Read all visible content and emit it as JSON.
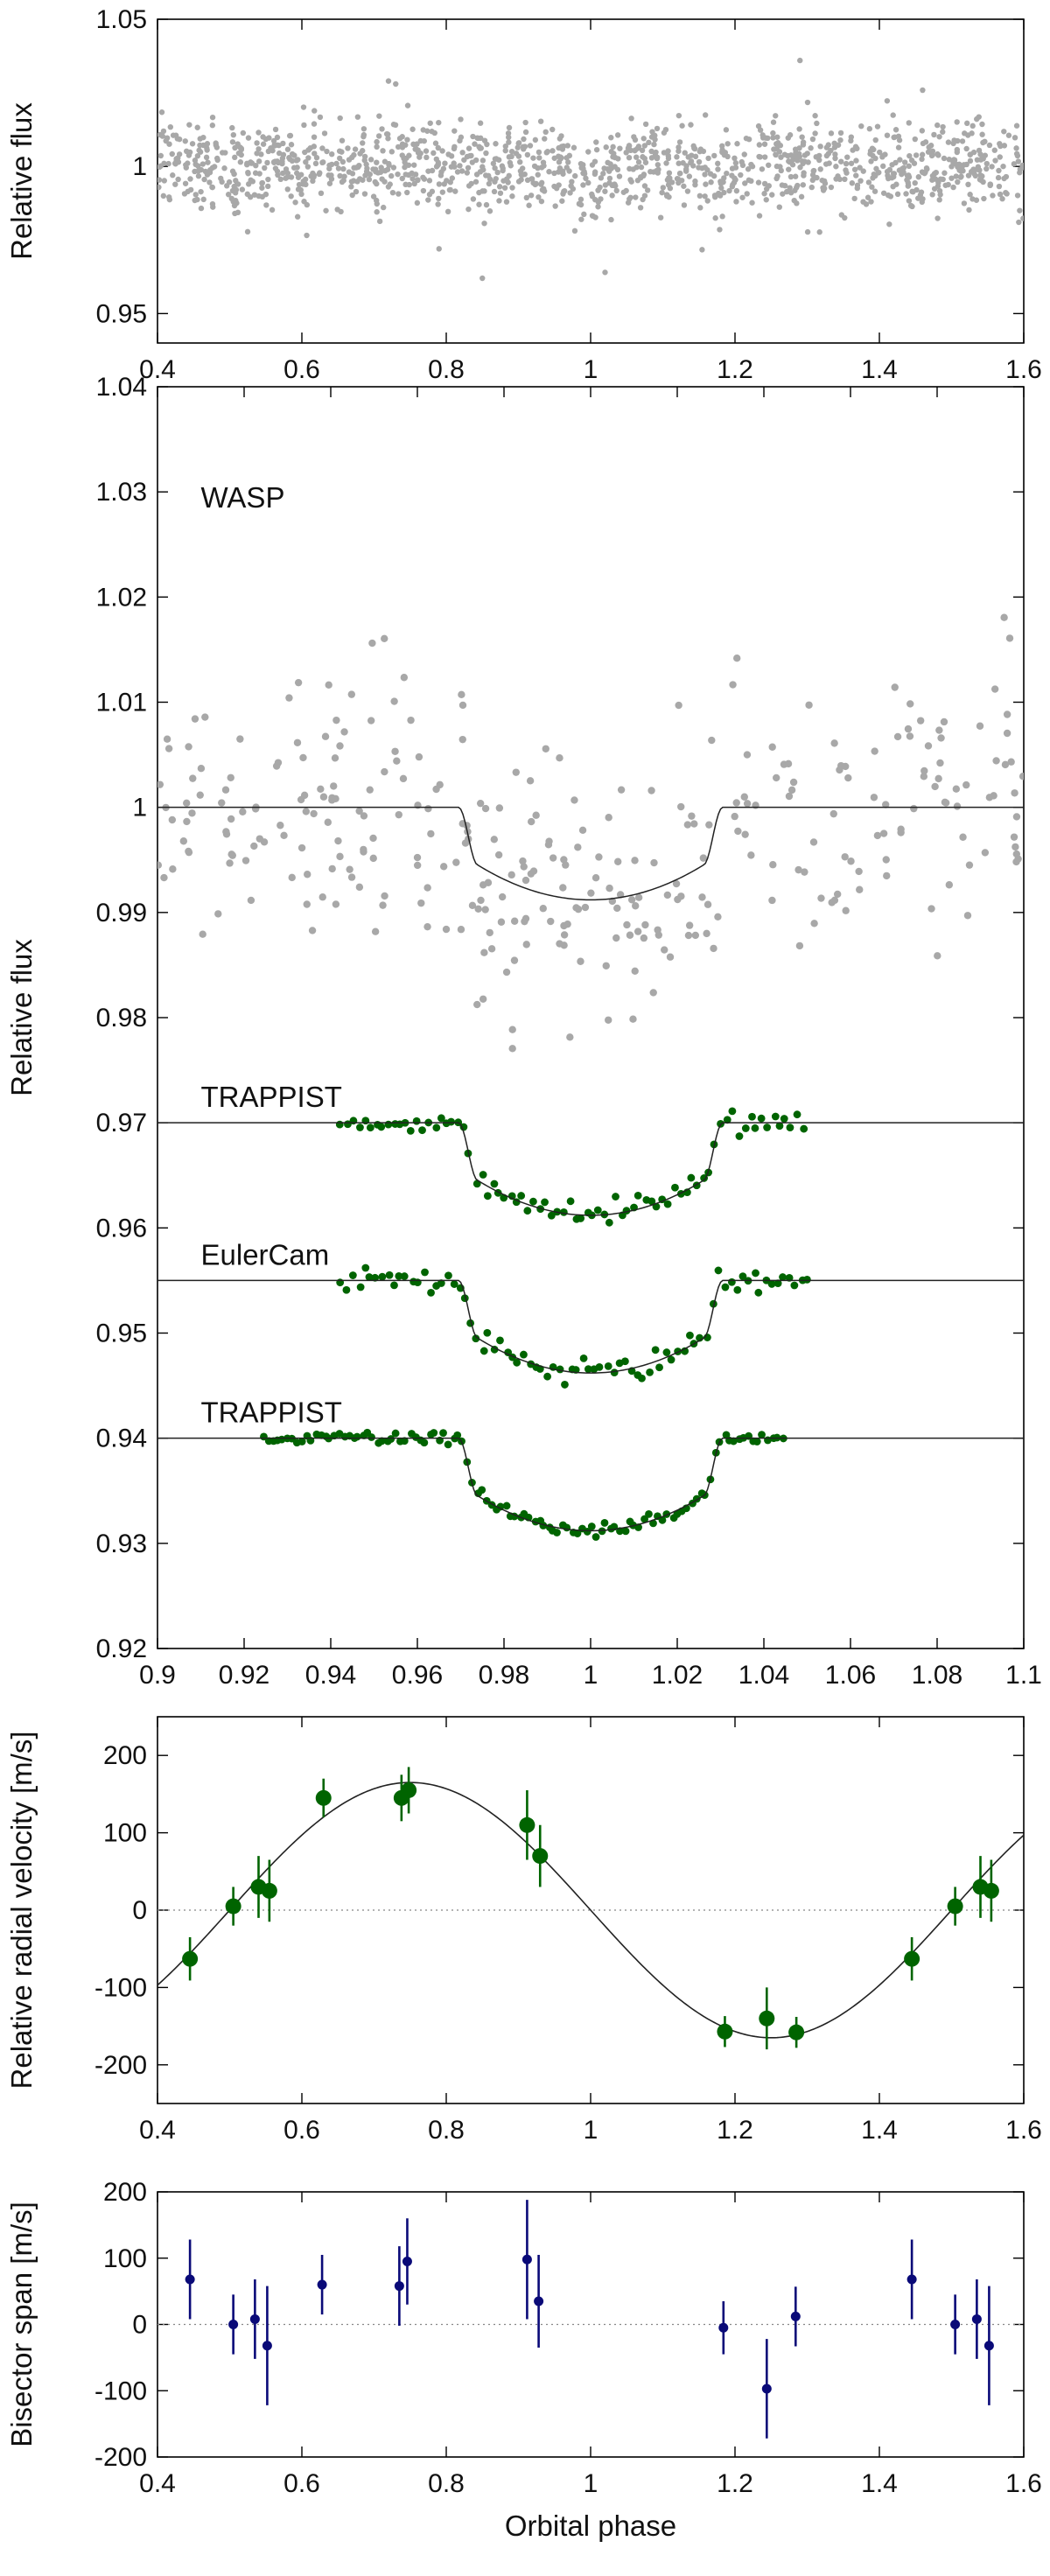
{
  "chart_data": [
    {
      "type": "scatter",
      "panel": "wasp-full-lightcurve",
      "xlabel": "",
      "ylabel": "Relative flux",
      "xlim": [
        0.4,
        1.6
      ],
      "ylim": [
        0.94,
        1.05
      ],
      "xticks": [
        "0.4",
        "0.6",
        "0.8",
        "1",
        "1.2",
        "1.4",
        "1.6"
      ],
      "yticks": [
        "0.95",
        "1",
        "1.05"
      ],
      "point_color": "#a8a8a8",
      "series": [
        {
          "scatter_around": 1.0,
          "sigma": 0.0075,
          "n_points": 1300,
          "x_range": [
            0.4,
            1.6
          ],
          "dip": {
            "center": 1.0,
            "half_width": 0.03,
            "depth": 0.009
          }
        }
      ],
      "notable_points": [
        {
          "x": 0.72,
          "y": 1.029
        },
        {
          "x": 0.73,
          "y": 1.028
        },
        {
          "x": 1.29,
          "y": 1.036
        },
        {
          "x": 0.85,
          "y": 0.962
        },
        {
          "x": 1.02,
          "y": 0.964
        },
        {
          "x": 0.79,
          "y": 0.972
        }
      ],
      "grid": false
    },
    {
      "type": "scatter",
      "panel": "phase-folded-transits",
      "xlabel": "",
      "ylabel": "Relative flux",
      "xlim": [
        0.9,
        1.1
      ],
      "ylim": [
        0.92,
        1.04
      ],
      "xticks": [
        "0.9",
        "0.92",
        "0.94",
        "0.96",
        "0.98",
        "1",
        "1.02",
        "1.04",
        "1.06",
        "1.08",
        "1.1"
      ],
      "yticks": [
        "0.92",
        "0.93",
        "0.94",
        "0.95",
        "0.96",
        "0.97",
        "0.98",
        "0.99",
        "1",
        "1.01",
        "1.02",
        "1.03",
        "1.04"
      ],
      "transit_model": {
        "center": 1.0,
        "half_width": 0.0305,
        "ingress": 0.0045,
        "depth_center": 0.0088,
        "depth_edge": 0.0055
      },
      "series": [
        {
          "name": "WASP",
          "baseline": 1.0,
          "sigma": 0.0062,
          "x_range": [
            0.9,
            1.1
          ],
          "n_points": 330,
          "color": "#a8a8a8",
          "point_size": "small"
        },
        {
          "name": "TRAPPIST",
          "baseline": 0.97,
          "sigma": 0.0006,
          "x_range": [
            0.942,
            1.05
          ],
          "n_points": 80,
          "color": "#006400",
          "point_size": "small"
        },
        {
          "name": "EulerCam",
          "baseline": 0.955,
          "sigma": 0.0006,
          "x_range": [
            0.942,
            1.051
          ],
          "n_points": 80,
          "color": "#006400",
          "point_size": "small"
        },
        {
          "name": "TRAPPIST",
          "baseline": 0.94,
          "sigma": 0.0003,
          "x_range": [
            0.924,
            1.045
          ],
          "n_points": 110,
          "color": "#006400",
          "point_size": "small"
        }
      ],
      "annotations": [
        {
          "text": "WASP",
          "x": 0.91,
          "y": 1.0285
        },
        {
          "text": "TRAPPIST",
          "x": 0.91,
          "y": 0.9715
        },
        {
          "text": "EulerCam",
          "x": 0.91,
          "y": 0.9565
        },
        {
          "text": "TRAPPIST",
          "x": 0.91,
          "y": 0.9415
        }
      ],
      "grid": false
    },
    {
      "type": "scatter",
      "panel": "radial-velocity",
      "xlabel": "",
      "ylabel": "Relative radial velocity [m/s]",
      "xlim": [
        0.4,
        1.6
      ],
      "ylim": [
        -250,
        250
      ],
      "xticks": [
        "0.4",
        "0.6",
        "0.8",
        "1",
        "1.2",
        "1.4",
        "1.6"
      ],
      "yticks": [
        "-200",
        "-100",
        "0",
        "100",
        "200"
      ],
      "model": {
        "semi_amplitude": 165,
        "phase_of_maximum": 0.75
      },
      "color": "#006400",
      "series": [
        {
          "name": "",
          "points": [
            {
              "x": 0.445,
              "y": -63,
              "err": 28
            },
            {
              "x": 0.505,
              "y": 5,
              "err": 25
            },
            {
              "x": 0.54,
              "y": 30,
              "err": 40
            },
            {
              "x": 0.555,
              "y": 25,
              "err": 40
            },
            {
              "x": 0.63,
              "y": 145,
              "err": 25
            },
            {
              "x": 0.738,
              "y": 145,
              "err": 30
            },
            {
              "x": 0.748,
              "y": 155,
              "err": 30
            },
            {
              "x": 0.912,
              "y": 110,
              "err": 45
            },
            {
              "x": 0.93,
              "y": 70,
              "err": 40
            },
            {
              "x": 1.186,
              "y": -157,
              "err": 20
            },
            {
              "x": 1.244,
              "y": -140,
              "err": 40
            },
            {
              "x": 1.285,
              "y": -158,
              "err": 20
            },
            {
              "x": 1.445,
              "y": -63,
              "err": 28
            },
            {
              "x": 1.505,
              "y": 5,
              "err": 25
            },
            {
              "x": 1.54,
              "y": 30,
              "err": 40
            },
            {
              "x": 1.555,
              "y": 25,
              "err": 40
            }
          ]
        }
      ],
      "zero_line": "dotted",
      "grid": false
    },
    {
      "type": "scatter",
      "panel": "bisector-span",
      "xlabel": "Orbital phase",
      "ylabel": "Bisector span [m/s]",
      "xlim": [
        0.4,
        1.6
      ],
      "ylim": [
        -200,
        200
      ],
      "xticks": [
        "0.4",
        "0.6",
        "0.8",
        "1",
        "1.2",
        "1.4",
        "1.6"
      ],
      "yticks": [
        "-200",
        "-100",
        "0",
        "100",
        "200"
      ],
      "color": "#0a0a78",
      "series": [
        {
          "name": "",
          "points": [
            {
              "x": 0.445,
              "y": 68,
              "err": 60
            },
            {
              "x": 0.505,
              "y": 0,
              "err": 45
            },
            {
              "x": 0.535,
              "y": 8,
              "err": 60
            },
            {
              "x": 0.552,
              "y": -32,
              "err": 90
            },
            {
              "x": 0.628,
              "y": 60,
              "err": 45
            },
            {
              "x": 0.735,
              "y": 58,
              "err": 60
            },
            {
              "x": 0.746,
              "y": 95,
              "err": 65
            },
            {
              "x": 0.912,
              "y": 98,
              "err": 90
            },
            {
              "x": 0.928,
              "y": 35,
              "err": 70
            },
            {
              "x": 1.184,
              "y": -5,
              "err": 40
            },
            {
              "x": 1.244,
              "y": -97,
              "err": 75
            },
            {
              "x": 1.284,
              "y": 12,
              "err": 45
            },
            {
              "x": 1.445,
              "y": 68,
              "err": 60
            },
            {
              "x": 1.505,
              "y": 0,
              "err": 45
            },
            {
              "x": 1.535,
              "y": 8,
              "err": 60
            },
            {
              "x": 1.552,
              "y": -32,
              "err": 90
            }
          ]
        }
      ],
      "zero_line": "dotted",
      "grid": false
    }
  ]
}
